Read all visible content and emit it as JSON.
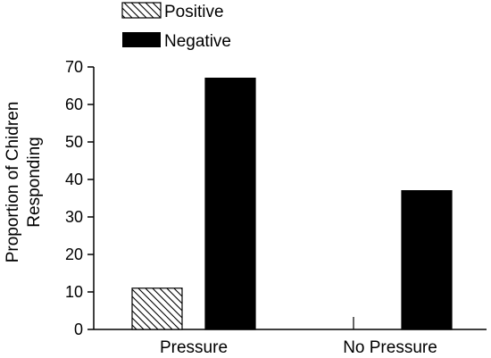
{
  "chart_data": {
    "type": "bar",
    "categories": [
      "Pressure",
      "No Pressure"
    ],
    "series": [
      {
        "name": "Positive",
        "values": [
          11,
          0
        ],
        "fill": "hatch"
      },
      {
        "name": "Negative",
        "values": [
          67,
          37
        ],
        "fill": "#000000"
      }
    ],
    "ylabel_lines": [
      "Proportion of Chidren",
      "Responding"
    ],
    "xlabel": "",
    "title": "",
    "ylim": [
      0,
      70
    ],
    "yticks": [
      0,
      10,
      20,
      30,
      40,
      50,
      60,
      70
    ],
    "grid": false,
    "legend": "top-left"
  }
}
